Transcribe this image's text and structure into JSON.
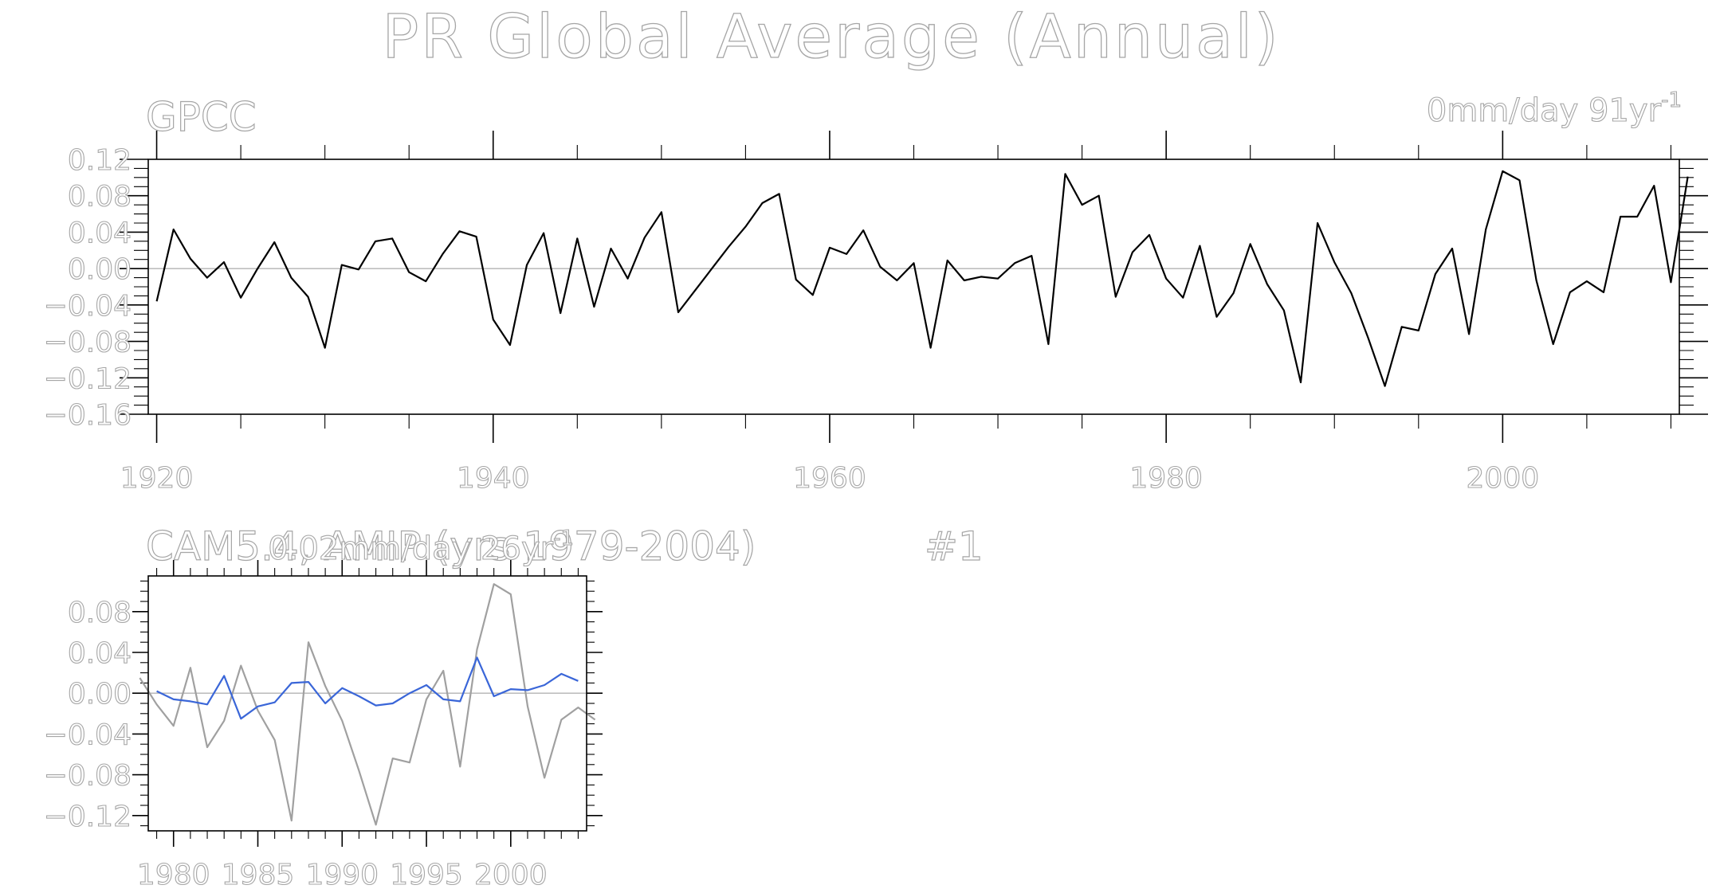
{
  "title": "PR Global Average (Annual)",
  "panels": [
    {
      "subtitle": "GPCC",
      "trend_label": "0mm/day 91yr",
      "trend_exp": "-1"
    },
    {
      "subtitle": "CAM5.4, AMIP (yrs 1979-2004)",
      "run_label": "#1",
      "trend_label": "0.02mm/day 26yr",
      "trend_exp": "-1"
    }
  ],
  "chart_data": [
    {
      "type": "line",
      "title": "GPCC",
      "xlim": [
        1919.5,
        2010.5
      ],
      "ylim": [
        -0.16,
        0.12
      ],
      "x_ticks": [
        "1920",
        "1940",
        "1960",
        "1980",
        "2000"
      ],
      "y_ticks": [
        "0.12",
        "0.08",
        "0.04",
        "0.00",
        "−0.04",
        "−0.08",
        "−0.12",
        "−0.16"
      ],
      "grid": false,
      "series": [
        {
          "color": "#000000",
          "x_start": 1920,
          "values": [
            -0.036,
            0.043,
            0.011,
            -0.01,
            0.007,
            -0.032,
            0.0,
            0.029,
            -0.01,
            -0.031,
            -0.087,
            0.004,
            -0.001,
            0.03,
            0.033,
            -0.004,
            -0.014,
            0.016,
            0.041,
            0.035,
            -0.056,
            -0.084,
            0.004,
            0.039,
            -0.049,
            0.033,
            -0.042,
            0.022,
            -0.011,
            0.034,
            0.062,
            -0.048,
            -0.024,
            0.0,
            0.024,
            0.046,
            0.072,
            0.082,
            -0.012,
            -0.029,
            0.023,
            0.016,
            0.042,
            0.002,
            -0.013,
            0.006,
            -0.087,
            0.009,
            -0.013,
            -0.009,
            -0.011,
            0.006,
            0.014,
            -0.083,
            0.104,
            0.07,
            0.08,
            -0.031,
            0.018,
            0.037,
            -0.011,
            -0.032,
            0.025,
            -0.053,
            -0.027,
            0.027,
            -0.017,
            -0.046,
            -0.125,
            0.05,
            0.007,
            -0.027,
            -0.076,
            -0.129,
            -0.064,
            -0.068,
            -0.006,
            0.022,
            -0.072,
            0.043,
            0.107,
            0.097,
            -0.013,
            -0.083,
            -0.026,
            -0.014,
            -0.026,
            0.057,
            0.057,
            0.091,
            -0.015,
            0.101
          ]
        }
      ]
    },
    {
      "type": "line",
      "title": "CAM5.4, AMIP (yrs 1979-2004)",
      "xlim": [
        1978.5,
        2004.5
      ],
      "ylim": [
        -0.135,
        0.115
      ],
      "x_ticks": [
        "1980",
        "1985",
        "1990",
        "1995",
        "2000"
      ],
      "y_ticks": [
        "0.08",
        "0.04",
        "0.00",
        "−0.04",
        "−0.08",
        "−0.12"
      ],
      "grid": false,
      "series": [
        {
          "color": "#a0a0a0",
          "x_start": 1978,
          "values": [
            0.015,
            -0.011,
            -0.032,
            0.025,
            -0.053,
            -0.027,
            0.027,
            -0.017,
            -0.046,
            -0.125,
            0.05,
            0.007,
            -0.027,
            -0.076,
            -0.129,
            -0.064,
            -0.068,
            -0.006,
            0.022,
            -0.072,
            0.043,
            0.107,
            0.097,
            -0.013,
            -0.083,
            -0.026,
            -0.014,
            -0.026
          ]
        },
        {
          "color": "#3a66d8",
          "x_start": 1979,
          "values": [
            0.002,
            -0.006,
            -0.008,
            -0.011,
            0.017,
            -0.025,
            -0.013,
            -0.009,
            0.01,
            0.011,
            -0.01,
            0.005,
            -0.003,
            -0.012,
            -0.01,
            0.0,
            0.008,
            -0.006,
            -0.008,
            0.035,
            -0.003,
            0.004,
            0.003,
            0.008,
            0.019,
            0.012
          ]
        }
      ]
    }
  ]
}
